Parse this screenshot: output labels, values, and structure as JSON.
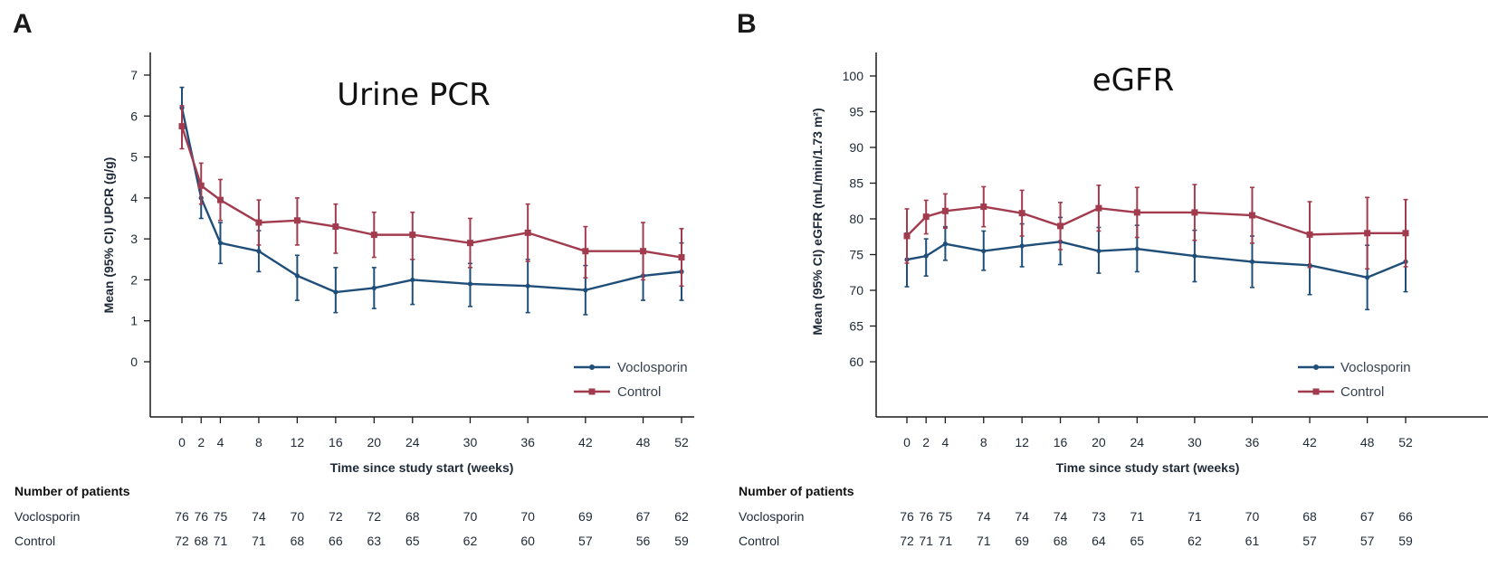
{
  "chart_data": [
    {
      "type": "line",
      "panel": "A",
      "title": "Urine PCR",
      "xlabel": "Time since study start (weeks)",
      "ylabel": "Mean (95% CI) UPCR (g/g)",
      "x": [
        0,
        2,
        4,
        8,
        12,
        16,
        20,
        24,
        30,
        36,
        42,
        48,
        52
      ],
      "ylim": [
        -1.2,
        7.6
      ],
      "yticks": [
        0,
        1,
        2,
        3,
        4,
        5,
        6,
        7
      ],
      "legend_position": "bottom-right",
      "series": [
        {
          "name": "Voclosporin",
          "color": "#1f4e79",
          "marker": "circle",
          "values": [
            6.2,
            4.0,
            2.9,
            2.7,
            2.1,
            1.7,
            1.8,
            2.0,
            1.9,
            1.85,
            1.75,
            2.1,
            2.2
          ],
          "lower": [
            5.8,
            3.5,
            2.4,
            2.2,
            1.5,
            1.2,
            1.3,
            1.4,
            1.35,
            1.2,
            1.15,
            1.5,
            1.5
          ],
          "upper": [
            6.7,
            4.3,
            3.4,
            3.2,
            2.6,
            2.3,
            2.3,
            2.5,
            2.4,
            2.5,
            2.35,
            2.7,
            2.9
          ]
        },
        {
          "name": "Control",
          "color": "#a23b4e",
          "marker": "square",
          "values": [
            5.75,
            4.3,
            3.95,
            3.4,
            3.45,
            3.3,
            3.1,
            3.1,
            2.9,
            3.15,
            2.7,
            2.7,
            2.55
          ],
          "lower": [
            5.2,
            3.85,
            3.45,
            2.85,
            2.85,
            2.65,
            2.55,
            2.5,
            2.3,
            2.45,
            2.05,
            2.0,
            1.85
          ],
          "upper": [
            6.25,
            4.85,
            4.45,
            3.95,
            4.0,
            3.85,
            3.65,
            3.65,
            3.5,
            3.85,
            3.3,
            3.4,
            3.25
          ]
        }
      ]
    },
    {
      "type": "line",
      "panel": "B",
      "title": "eGFR",
      "xlabel": "Time since study start (weeks)",
      "ylabel": "Mean (95% CI) eGFR (mL/min/1.73 m²)",
      "x": [
        0,
        2,
        4,
        8,
        12,
        16,
        20,
        24,
        30,
        36,
        42,
        48,
        52
      ],
      "ylim": [
        52,
        104
      ],
      "yticks": [
        60,
        65,
        70,
        75,
        80,
        85,
        90,
        95,
        100
      ],
      "legend_position": "bottom-right",
      "series": [
        {
          "name": "Voclosporin",
          "color": "#1f4e79",
          "marker": "circle",
          "values": [
            74.3,
            74.8,
            76.5,
            75.5,
            76.2,
            76.8,
            75.5,
            75.8,
            74.8,
            74.0,
            73.5,
            71.8,
            74.0
          ],
          "lower": [
            70.5,
            72.0,
            74.2,
            72.8,
            73.3,
            73.6,
            72.4,
            72.6,
            71.2,
            70.4,
            69.4,
            67.3,
            69.8
          ],
          "upper": [
            78.0,
            77.2,
            78.9,
            78.3,
            79.3,
            80.2,
            78.8,
            79.1,
            78.4,
            77.6,
            77.6,
            76.3,
            78.2
          ]
        },
        {
          "name": "Control",
          "color": "#a23b4e",
          "marker": "square",
          "values": [
            77.6,
            80.3,
            81.1,
            81.7,
            80.8,
            79.0,
            81.5,
            80.9,
            80.9,
            80.5,
            77.8,
            78.0,
            78.0
          ],
          "lower": [
            73.8,
            77.9,
            78.7,
            78.9,
            77.6,
            75.7,
            78.3,
            77.4,
            77.0,
            76.6,
            73.2,
            73.0,
            73.3
          ],
          "upper": [
            81.4,
            82.6,
            83.5,
            84.5,
            84.0,
            82.3,
            84.7,
            84.4,
            84.8,
            84.4,
            82.4,
            83.0,
            82.7
          ]
        }
      ]
    }
  ],
  "panels": {
    "A": {
      "letter": "A",
      "table": {
        "heading": "Number of patients",
        "rows": [
          {
            "label": "Voclosporin",
            "values": [
              "76",
              "76",
              "75",
              "74",
              "70",
              "72",
              "72",
              "68",
              "70",
              "70",
              "69",
              "67",
              "62"
            ]
          },
          {
            "label": "Control",
            "values": [
              "72",
              "68",
              "71",
              "71",
              "68",
              "66",
              "63",
              "65",
              "62",
              "60",
              "57",
              "56",
              "59"
            ]
          }
        ]
      }
    },
    "B": {
      "letter": "B",
      "table": {
        "heading": "Number of patients",
        "rows": [
          {
            "label": "Voclosporin",
            "values": [
              "76",
              "76",
              "75",
              "74",
              "74",
              "74",
              "73",
              "71",
              "71",
              "70",
              "68",
              "67",
              "66"
            ]
          },
          {
            "label": "Control",
            "values": [
              "72",
              "71",
              "71",
              "71",
              "69",
              "68",
              "64",
              "65",
              "62",
              "61",
              "57",
              "57",
              "59"
            ]
          }
        ]
      }
    }
  }
}
